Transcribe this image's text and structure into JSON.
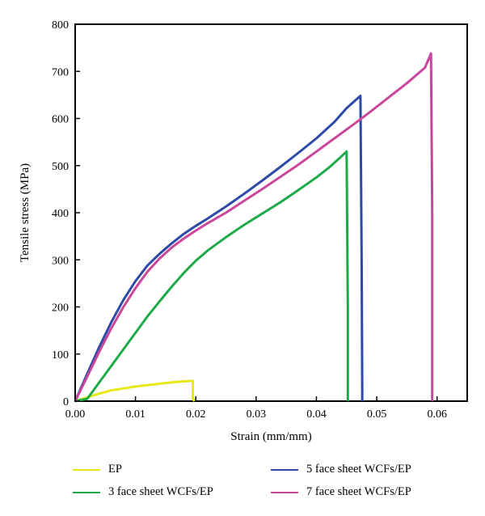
{
  "chart_data": {
    "type": "line",
    "xlabel": "Strain (mm/mm)",
    "ylabel": "Tensile stress (MPa)",
    "xlim": [
      0,
      0.065
    ],
    "ylim": [
      0,
      800
    ],
    "xticks": [
      0.0,
      0.01,
      0.02,
      0.03,
      0.04,
      0.05,
      0.06
    ],
    "xtick_labels": [
      "0.00",
      "0.01",
      "0.02",
      "0.03",
      "0.04",
      "0.05",
      "0.06"
    ],
    "yticks": [
      0,
      100,
      200,
      300,
      400,
      500,
      600,
      700,
      800
    ],
    "ytick_labels": [
      "0",
      "100",
      "200",
      "300",
      "400",
      "500",
      "600",
      "700",
      "800"
    ],
    "grid": false,
    "legend_position": "bottom",
    "series": [
      {
        "name": "EP",
        "color": "#e8e817",
        "x": [
          0.0,
          0.002,
          0.004,
          0.006,
          0.008,
          0.01,
          0.012,
          0.014,
          0.016,
          0.018,
          0.0195,
          0.0195,
          0.0198
        ],
        "y": [
          0,
          8,
          16,
          23,
          27,
          31,
          34,
          37,
          40,
          42,
          43,
          5,
          0
        ]
      },
      {
        "name": "3 face sheet WCFs/EP",
        "color": "#1faa4a",
        "x": [
          0.0,
          0.002,
          0.004,
          0.006,
          0.008,
          0.01,
          0.012,
          0.014,
          0.016,
          0.018,
          0.02,
          0.022,
          0.025,
          0.028,
          0.031,
          0.034,
          0.037,
          0.04,
          0.042,
          0.0435,
          0.045,
          0.0452,
          0.0452
        ],
        "y": [
          0,
          5,
          40,
          75,
          110,
          145,
          180,
          212,
          243,
          272,
          298,
          320,
          348,
          374,
          398,
          422,
          448,
          475,
          495,
          512,
          530,
          200,
          0
        ]
      },
      {
        "name": "5 face sheet WCFs/EP",
        "color": "#2e4aa8",
        "x": [
          0.0,
          0.002,
          0.004,
          0.006,
          0.008,
          0.01,
          0.012,
          0.014,
          0.016,
          0.018,
          0.02,
          0.022,
          0.025,
          0.028,
          0.031,
          0.034,
          0.037,
          0.04,
          0.043,
          0.045,
          0.0473,
          0.0475,
          0.0476
        ],
        "y": [
          0,
          58,
          115,
          168,
          215,
          255,
          288,
          313,
          335,
          355,
          372,
          388,
          413,
          440,
          468,
          497,
          527,
          558,
          593,
          622,
          648,
          300,
          0
        ]
      },
      {
        "name": "7 face sheet WCFs/EP",
        "color": "#c8479a",
        "x": [
          0.0,
          0.002,
          0.004,
          0.006,
          0.008,
          0.01,
          0.012,
          0.014,
          0.016,
          0.018,
          0.02,
          0.022,
          0.025,
          0.028,
          0.031,
          0.034,
          0.037,
          0.04,
          0.043,
          0.046,
          0.049,
          0.052,
          0.055,
          0.058,
          0.059,
          0.0592,
          0.0592
        ],
        "y": [
          0,
          52,
          105,
          155,
          200,
          240,
          275,
          303,
          326,
          345,
          362,
          378,
          400,
          425,
          450,
          476,
          502,
          530,
          558,
          586,
          615,
          645,
          675,
          708,
          738,
          400,
          0
        ]
      }
    ]
  }
}
